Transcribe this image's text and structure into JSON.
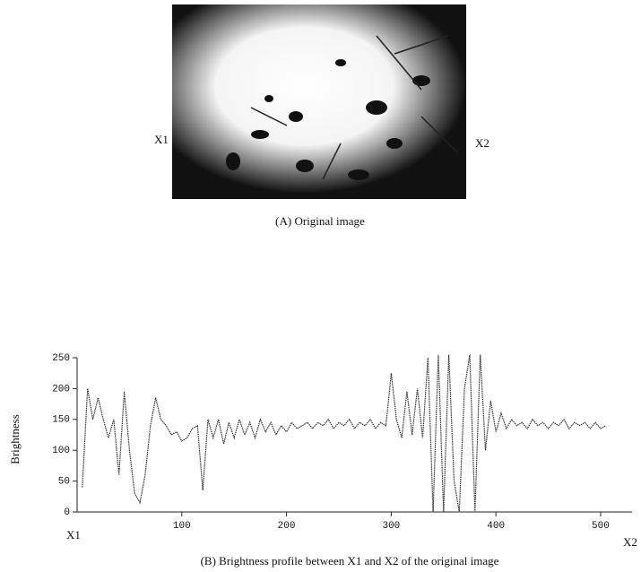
{
  "image": {
    "left_label": "X1",
    "right_label": "X2",
    "caption": "(A)   Original image"
  },
  "chart_data": {
    "type": "line",
    "title": "(B)   Brightness profile between X1 and X2 of the original image",
    "y_label": "Brightness",
    "x_start_label": "X1",
    "x_end_label": "X2",
    "xlim": [
      0,
      530
    ],
    "ylim": [
      0,
      250
    ],
    "xticks": [
      100,
      200,
      300,
      400,
      500
    ],
    "yticks": [
      0,
      50,
      100,
      150,
      200,
      250
    ],
    "color": "#333333",
    "x": [
      5,
      10,
      15,
      20,
      25,
      30,
      35,
      40,
      45,
      50,
      55,
      60,
      65,
      70,
      75,
      80,
      85,
      90,
      95,
      100,
      105,
      110,
      115,
      120,
      125,
      130,
      135,
      140,
      145,
      150,
      155,
      160,
      165,
      170,
      175,
      180,
      185,
      190,
      195,
      200,
      205,
      210,
      215,
      220,
      225,
      230,
      235,
      240,
      245,
      250,
      255,
      260,
      265,
      270,
      275,
      280,
      285,
      290,
      295,
      300,
      305,
      310,
      315,
      320,
      325,
      330,
      335,
      340,
      345,
      350,
      355,
      360,
      365,
      370,
      375,
      380,
      385,
      390,
      395,
      400,
      405,
      410,
      415,
      420,
      425,
      430,
      435,
      440,
      445,
      450,
      455,
      460,
      465,
      470,
      475,
      480,
      485,
      490,
      495,
      500,
      505
    ],
    "values": [
      40,
      200,
      150,
      185,
      150,
      120,
      150,
      60,
      195,
      100,
      30,
      15,
      60,
      140,
      185,
      150,
      140,
      125,
      130,
      115,
      120,
      135,
      140,
      35,
      150,
      120,
      150,
      110,
      145,
      120,
      150,
      125,
      145,
      120,
      150,
      130,
      145,
      125,
      140,
      130,
      145,
      135,
      140,
      145,
      135,
      145,
      140,
      150,
      135,
      145,
      140,
      150,
      135,
      145,
      140,
      150,
      135,
      145,
      140,
      225,
      150,
      120,
      195,
      125,
      200,
      120,
      250,
      0,
      255,
      0,
      255,
      50,
      0,
      200,
      255,
      0,
      255,
      100,
      180,
      130,
      160,
      135,
      150,
      140,
      145,
      135,
      150,
      140,
      145,
      135,
      145,
      140,
      150,
      135,
      145,
      140,
      145,
      135,
      145,
      135,
      140
    ]
  }
}
